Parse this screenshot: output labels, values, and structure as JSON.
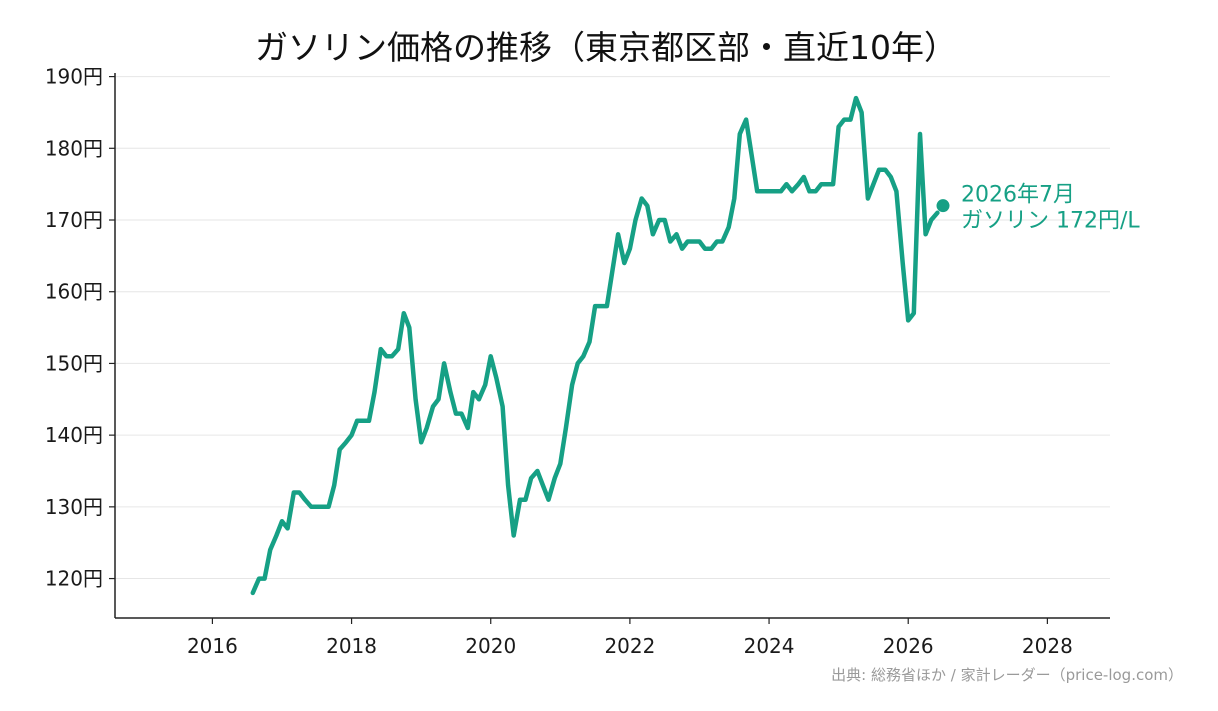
{
  "chart_data": {
    "type": "line",
    "title": "ガソリン価格の推移（東京都区部・直近10年）",
    "xlabel": "",
    "ylabel": "",
    "xlim": [
      2014.6,
      2028.9
    ],
    "ylim": [
      114.5,
      190.5
    ],
    "xticks": [
      2016,
      2018,
      2020,
      2022,
      2024,
      2026,
      2028
    ],
    "x_tick_labels": [
      "2016",
      "2018",
      "2020",
      "2022",
      "2024",
      "2026",
      "2028"
    ],
    "yticks": [
      120,
      130,
      140,
      150,
      160,
      170,
      180,
      190
    ],
    "y_tick_labels": [
      "120円",
      "130円",
      "140円",
      "150円",
      "160円",
      "170円",
      "180円",
      "190円"
    ],
    "grid": "horizontal",
    "line_color": "#16a085",
    "series": [
      {
        "name": "ガソリン",
        "points": [
          [
            2016.58,
            118
          ],
          [
            2016.67,
            120
          ],
          [
            2016.75,
            120
          ],
          [
            2016.83,
            124
          ],
          [
            2016.92,
            126
          ],
          [
            2017.0,
            128
          ],
          [
            2017.08,
            127
          ],
          [
            2017.17,
            132
          ],
          [
            2017.25,
            132
          ],
          [
            2017.33,
            131
          ],
          [
            2017.42,
            130
          ],
          [
            2017.5,
            130
          ],
          [
            2017.58,
            130
          ],
          [
            2017.67,
            130
          ],
          [
            2017.75,
            133
          ],
          [
            2017.83,
            138
          ],
          [
            2017.92,
            139
          ],
          [
            2018.0,
            140
          ],
          [
            2018.08,
            142
          ],
          [
            2018.17,
            142
          ],
          [
            2018.25,
            142
          ],
          [
            2018.33,
            146
          ],
          [
            2018.42,
            152
          ],
          [
            2018.5,
            151
          ],
          [
            2018.58,
            151
          ],
          [
            2018.67,
            152
          ],
          [
            2018.75,
            157
          ],
          [
            2018.83,
            155
          ],
          [
            2018.92,
            145
          ],
          [
            2019.0,
            139
          ],
          [
            2019.08,
            141
          ],
          [
            2019.17,
            144
          ],
          [
            2019.25,
            145
          ],
          [
            2019.33,
            150
          ],
          [
            2019.42,
            146
          ],
          [
            2019.5,
            143
          ],
          [
            2019.58,
            143
          ],
          [
            2019.67,
            141
          ],
          [
            2019.75,
            146
          ],
          [
            2019.83,
            145
          ],
          [
            2019.92,
            147
          ],
          [
            2020.0,
            151
          ],
          [
            2020.08,
            148
          ],
          [
            2020.17,
            144
          ],
          [
            2020.25,
            133
          ],
          [
            2020.33,
            126
          ],
          [
            2020.42,
            131
          ],
          [
            2020.5,
            131
          ],
          [
            2020.58,
            134
          ],
          [
            2020.67,
            135
          ],
          [
            2020.75,
            133
          ],
          [
            2020.83,
            131
          ],
          [
            2020.92,
            134
          ],
          [
            2021.0,
            136
          ],
          [
            2021.08,
            141
          ],
          [
            2021.17,
            147
          ],
          [
            2021.25,
            150
          ],
          [
            2021.33,
            151
          ],
          [
            2021.42,
            153
          ],
          [
            2021.5,
            158
          ],
          [
            2021.58,
            158
          ],
          [
            2021.67,
            158
          ],
          [
            2021.75,
            163
          ],
          [
            2021.83,
            168
          ],
          [
            2021.92,
            164
          ],
          [
            2022.0,
            166
          ],
          [
            2022.08,
            170
          ],
          [
            2022.17,
            173
          ],
          [
            2022.25,
            172
          ],
          [
            2022.33,
            168
          ],
          [
            2022.42,
            170
          ],
          [
            2022.5,
            170
          ],
          [
            2022.58,
            167
          ],
          [
            2022.67,
            168
          ],
          [
            2022.75,
            166
          ],
          [
            2022.83,
            167
          ],
          [
            2022.92,
            167
          ],
          [
            2023.0,
            167
          ],
          [
            2023.08,
            166
          ],
          [
            2023.17,
            166
          ],
          [
            2023.25,
            167
          ],
          [
            2023.33,
            167
          ],
          [
            2023.42,
            169
          ],
          [
            2023.5,
            173
          ],
          [
            2023.58,
            182
          ],
          [
            2023.67,
            184
          ],
          [
            2023.75,
            179
          ],
          [
            2023.83,
            174
          ],
          [
            2023.92,
            174
          ],
          [
            2024.0,
            174
          ],
          [
            2024.08,
            174
          ],
          [
            2024.17,
            174
          ],
          [
            2024.25,
            175
          ],
          [
            2024.33,
            174
          ],
          [
            2024.42,
            175
          ],
          [
            2024.5,
            176
          ],
          [
            2024.58,
            174
          ],
          [
            2024.67,
            174
          ],
          [
            2024.75,
            175
          ],
          [
            2024.83,
            175
          ],
          [
            2024.92,
            175
          ],
          [
            2025.0,
            183
          ],
          [
            2025.08,
            184
          ],
          [
            2025.17,
            184
          ],
          [
            2025.25,
            187
          ],
          [
            2025.33,
            185
          ],
          [
            2025.42,
            173
          ],
          [
            2025.5,
            175
          ],
          [
            2025.58,
            177
          ],
          [
            2025.67,
            177
          ],
          [
            2025.75,
            176
          ],
          [
            2025.83,
            174
          ],
          [
            2025.92,
            164
          ],
          [
            2026.0,
            156
          ],
          [
            2026.08,
            157
          ],
          [
            2026.17,
            182
          ],
          [
            2026.25,
            168
          ],
          [
            2026.33,
            170
          ],
          [
            2026.42,
            171
          ]
        ]
      }
    ],
    "latest_point": {
      "x": 2026.5,
      "y": 172
    },
    "annotation": {
      "line1": "2026年7月",
      "line2": "ガソリン 172円/L"
    }
  },
  "source_note": "出典: 総務省ほか / 家計レーダー（price-log.com）"
}
